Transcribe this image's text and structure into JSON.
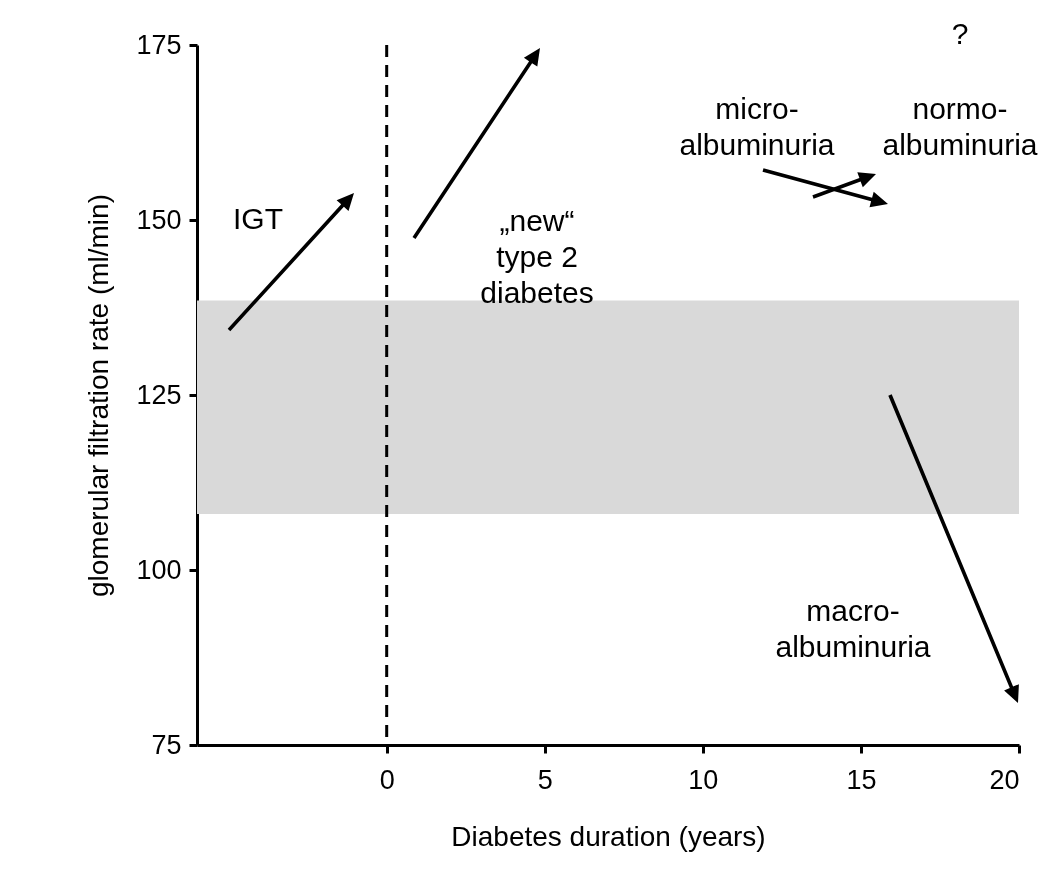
{
  "chart_data": {
    "type": "line",
    "xlabel": "Diabetes duration      (years)",
    "ylabel": "glomerular filtration rate (ml/min)",
    "xlim": [
      -6,
      20
    ],
    "xticks": [
      0,
      5,
      10,
      15,
      20
    ],
    "ylim": [
      75,
      175
    ],
    "yticks": [
      75,
      100,
      125,
      150,
      175
    ],
    "ref_lines": [
      {
        "axis": "x",
        "value": 0,
        "line_style": "dashed",
        "color": "#000000"
      }
    ],
    "bands": [
      {
        "axis": "y",
        "from": 108,
        "to": 138.5,
        "color": "#d9d9d9"
      }
    ],
    "annotations": [
      "IGT",
      "„new“\ntype 2\ndiabetes",
      "micro-\nalbuminuria",
      "normo-\nalbuminuria",
      "?",
      "macro-\nalbuminuria"
    ]
  }
}
